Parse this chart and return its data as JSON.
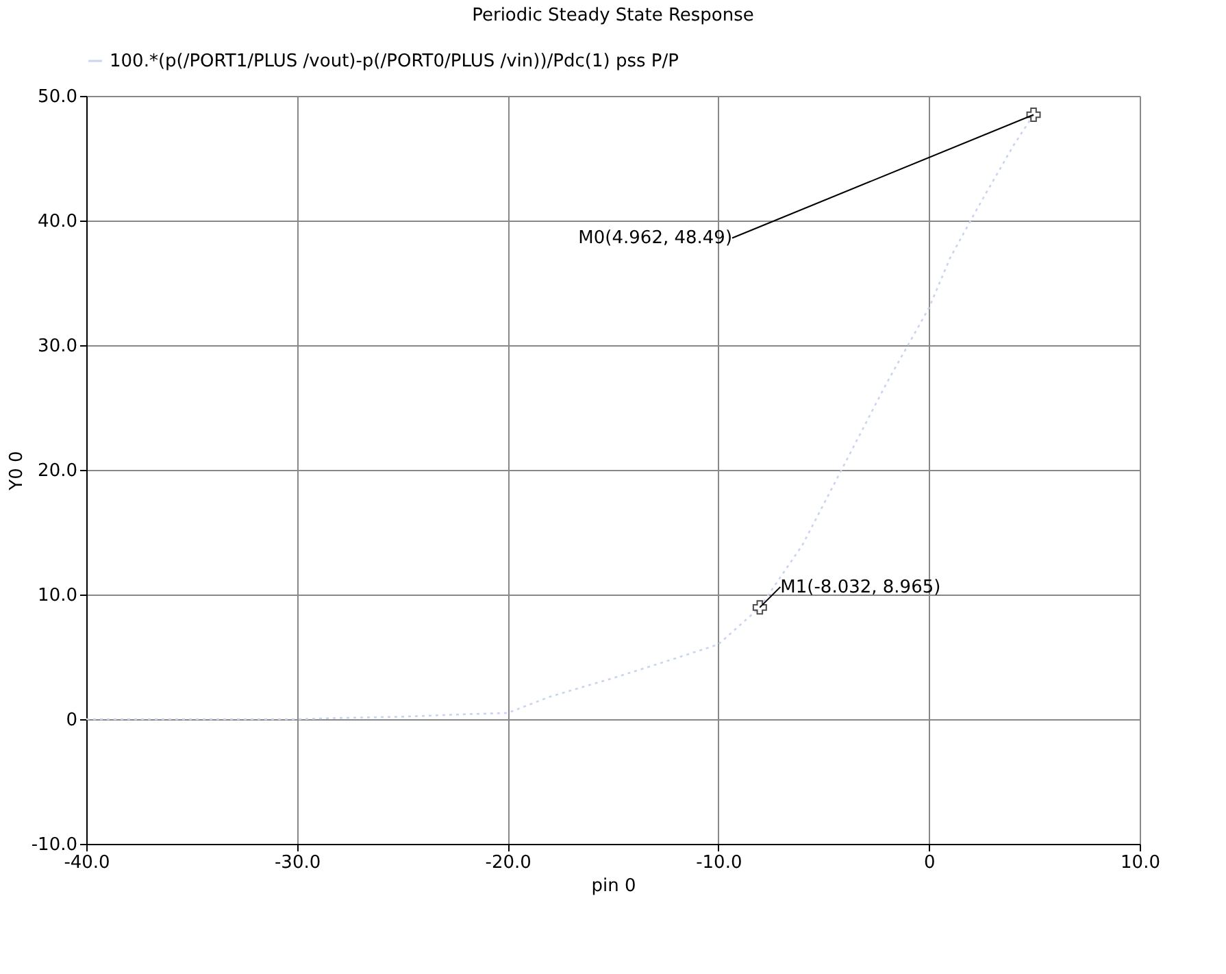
{
  "chart_data": {
    "type": "line",
    "title": "Periodic Steady State Response",
    "xlabel": "pin 0",
    "ylabel": "Y0 0",
    "x": [
      -40,
      -35,
      -30,
      -28,
      -25,
      -22,
      -20,
      -18,
      -15,
      -12,
      -10,
      -8.032,
      -6,
      -4,
      -2,
      0,
      1,
      2.3,
      4,
      4.962
    ],
    "series": [
      {
        "name": "100.*(p(/PORT1/PLUS /vout)-p(/PORT0/PLUS /vin))/Pdc(1)  pss P/P",
        "color": "#c8d4f0",
        "values": [
          0,
          0,
          0,
          0.1,
          0.2,
          0.4,
          0.5,
          1.8,
          3.3,
          4.9,
          6,
          8.965,
          14,
          20.5,
          27,
          33,
          37,
          41,
          46,
          48.49
        ]
      }
    ],
    "xlim": [
      -40,
      10
    ],
    "xticks": [
      {
        "value": -40,
        "label": "-40.0"
      },
      {
        "value": -30,
        "label": "-30.0"
      },
      {
        "value": -20,
        "label": "-20.0"
      },
      {
        "value": -10,
        "label": "-10.0"
      },
      0,
      {
        "value": 10,
        "label": "10.0"
      }
    ],
    "ylim": [
      -10,
      50
    ],
    "yticks": [
      {
        "value": -10,
        "label": "-10.0"
      },
      0,
      {
        "value": 10,
        "label": "10.0"
      },
      {
        "value": 20,
        "label": "20.0"
      },
      {
        "value": 30,
        "label": "30.0"
      },
      {
        "value": 40,
        "label": "40.0"
      },
      {
        "value": 50,
        "label": "50.0"
      }
    ],
    "annotations": [
      {
        "text": "M0(4.962, 48.49)",
        "x": 4.962,
        "y": 48.49
      },
      {
        "text": "M1(-8.032, 8.965)",
        "x": -8.032,
        "y": 8.965
      }
    ],
    "grid": true,
    "legend": "top left",
    "line_style": "dotted",
    "marker": "none"
  }
}
